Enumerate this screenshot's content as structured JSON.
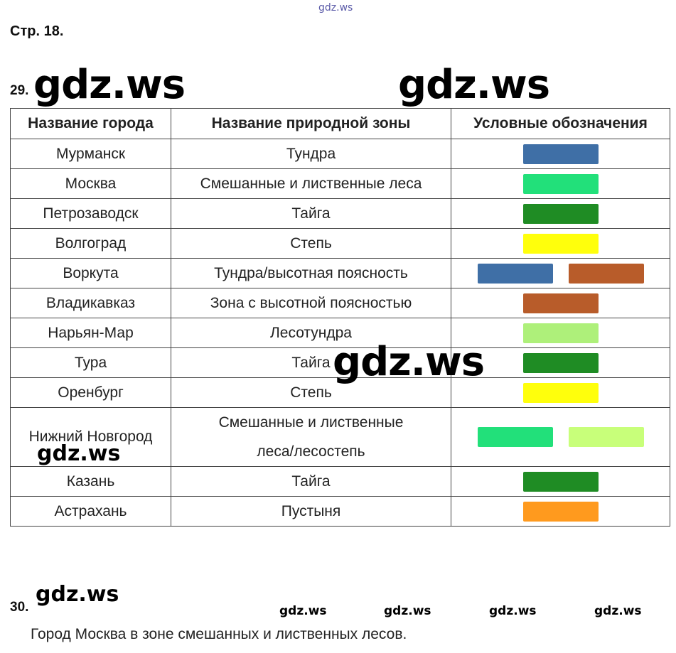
{
  "watermarks": {
    "top": "gdz.ws",
    "big_left": "gdz.ws",
    "big_right": "gdz.ws",
    "center": "gdz.ws",
    "mid_left": "gdz.ws",
    "bottom_left": "gdz.ws",
    "row": [
      "gdz.ws",
      "gdz.ws",
      "gdz.ws",
      "gdz.ws"
    ]
  },
  "page_label": "Стр. 18.",
  "task29": {
    "number": "29."
  },
  "table": {
    "headers": [
      "Название города",
      "Название природной зоны",
      "Условные обозначения"
    ],
    "rows": [
      {
        "city": "Мурманск",
        "zone": [
          "Тундра"
        ],
        "swatches": [
          "#3f6fa6"
        ]
      },
      {
        "city": "Москва",
        "zone": [
          "Смешанные и лиственные леса"
        ],
        "swatches": [
          "#22e07a"
        ]
      },
      {
        "city": "Петрозаводск",
        "zone": [
          "Тайга"
        ],
        "swatches": [
          "#1f8c24"
        ]
      },
      {
        "city": "Волгоград",
        "zone": [
          "Степь"
        ],
        "swatches": [
          "#ffff0c"
        ]
      },
      {
        "city": "Воркута",
        "zone": [
          "Тундра/высотная поясность"
        ],
        "swatches": [
          "#3f6fa6",
          "#b85c2a"
        ]
      },
      {
        "city": "Владикавказ",
        "zone": [
          "Зона с высотной поясностью"
        ],
        "swatches": [
          "#b85c2a"
        ]
      },
      {
        "city": "Нарьян-Мар",
        "zone": [
          "Лесотундра"
        ],
        "swatches": [
          "#aef07a"
        ]
      },
      {
        "city": "Тура",
        "zone": [
          "Тайга"
        ],
        "swatches": [
          "#1f8c24"
        ]
      },
      {
        "city": "Оренбург",
        "zone": [
          "Степь"
        ],
        "swatches": [
          "#ffff0c"
        ]
      },
      {
        "city": "Нижний Новгород",
        "zone": [
          "Смешанные и лиственные",
          "леса/лесостепь"
        ],
        "swatches": [
          "#22e07a",
          "#c8ff7a"
        ]
      },
      {
        "city": "Казань",
        "zone": [
          "Тайга"
        ],
        "swatches": [
          "#1f8c24"
        ]
      },
      {
        "city": "Астрахань",
        "zone": [
          "Пустыня"
        ],
        "swatches": [
          "#ff9a1e"
        ]
      }
    ]
  },
  "task30": {
    "number": "30.",
    "text": "Город Москва в зоне смешанных и лиственных лесов."
  }
}
